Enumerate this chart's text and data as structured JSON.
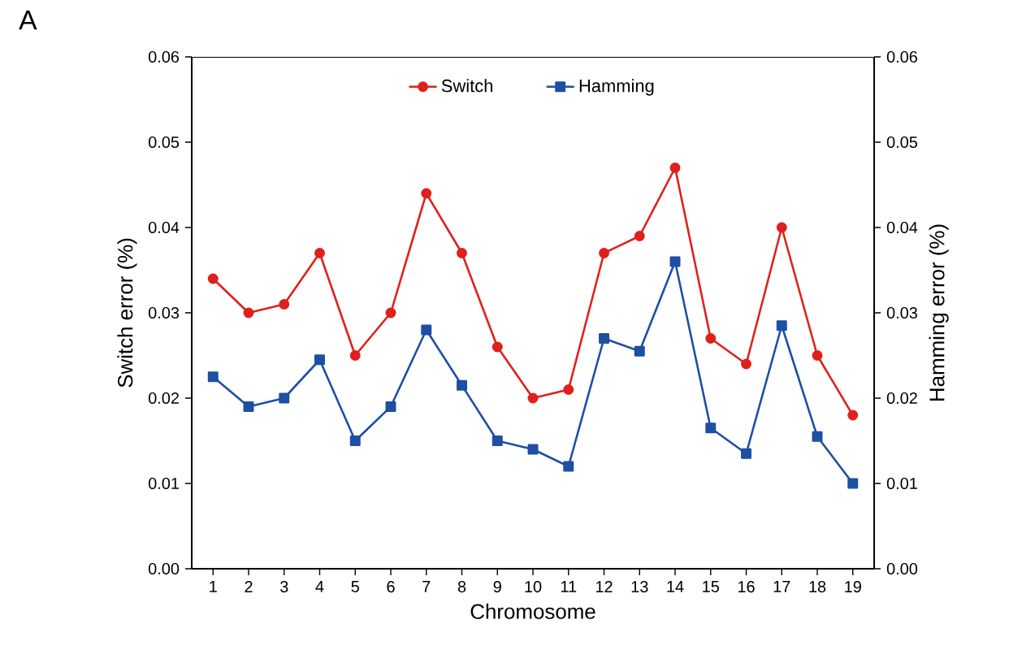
{
  "chart_data": {
    "type": "line",
    "xlabel": "Chromosome",
    "ylabel": "Switch error (%)",
    "y2label": "Hamming error (%)",
    "annotations": [
      "A"
    ],
    "categories": [
      "1",
      "2",
      "3",
      "4",
      "5",
      "6",
      "7",
      "8",
      "9",
      "10",
      "11",
      "12",
      "13",
      "14",
      "15",
      "16",
      "17",
      "18",
      "19"
    ],
    "series": [
      {
        "name": "Switch",
        "color": "#e0201c",
        "marker": "circle",
        "values": [
          0.034,
          0.03,
          0.031,
          0.037,
          0.025,
          0.03,
          0.044,
          0.037,
          0.026,
          0.02,
          0.021,
          0.037,
          0.039,
          0.047,
          0.027,
          0.024,
          0.04,
          0.025,
          0.018
        ]
      },
      {
        "name": "Hamming",
        "color": "#1d4fa3",
        "marker": "square",
        "axis": "y2",
        "values": [
          0.0225,
          0.019,
          0.02,
          0.0245,
          0.015,
          0.019,
          0.028,
          0.0215,
          0.015,
          0.014,
          0.012,
          0.027,
          0.0255,
          0.036,
          0.0165,
          0.0135,
          0.0285,
          0.0155,
          0.01
        ]
      }
    ],
    "ylim": [
      0,
      0.06
    ],
    "yticks": [
      {
        "value": 0,
        "label": "0.00"
      },
      {
        "value": 0.01,
        "label": "0.01"
      },
      {
        "value": 0.02,
        "label": "0.02"
      },
      {
        "value": 0.03,
        "label": "0.03"
      },
      {
        "value": 0.04,
        "label": "0.04"
      },
      {
        "value": 0.05,
        "label": "0.05"
      },
      {
        "value": 0.06,
        "label": "0.06"
      }
    ],
    "y2lim": [
      0,
      0.06
    ],
    "y2ticks": [
      {
        "value": 0,
        "label": "0.00"
      },
      {
        "value": 0.01,
        "label": "0.01"
      },
      {
        "value": 0.02,
        "label": "0.02"
      },
      {
        "value": 0.03,
        "label": "0.03"
      },
      {
        "value": 0.04,
        "label": "0.04"
      },
      {
        "value": 0.05,
        "label": "0.05"
      },
      {
        "value": 0.06,
        "label": "0.06"
      }
    ],
    "grid": false,
    "legend": "top",
    "line_style": "solid"
  }
}
